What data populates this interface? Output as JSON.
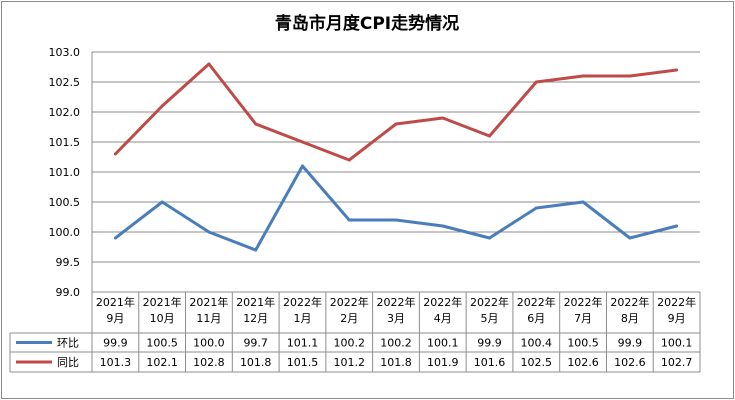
{
  "chart_data": {
    "type": "line",
    "title": "青岛市月度CPI走势情况",
    "categories": [
      [
        "2021年",
        "9月"
      ],
      [
        "2021年",
        "10月"
      ],
      [
        "2021年",
        "11月"
      ],
      [
        "2021年",
        "12月"
      ],
      [
        "2022年",
        "1月"
      ],
      [
        "2022年",
        "2月"
      ],
      [
        "2022年",
        "3月"
      ],
      [
        "2022年",
        "4月"
      ],
      [
        "2022年",
        "5月"
      ],
      [
        "2022年",
        "6月"
      ],
      [
        "2022年",
        "7月"
      ],
      [
        "2022年",
        "8月"
      ],
      [
        "2022年",
        "9月"
      ]
    ],
    "series": [
      {
        "name": "环比",
        "color": "#4a7ebb",
        "values": [
          99.9,
          100.5,
          100.0,
          99.7,
          101.1,
          100.2,
          100.2,
          100.1,
          99.9,
          100.4,
          100.5,
          99.9,
          100.1
        ]
      },
      {
        "name": "同比",
        "color": "#be4b48",
        "values": [
          101.3,
          102.1,
          102.8,
          101.8,
          101.5,
          101.2,
          101.8,
          101.9,
          101.6,
          102.5,
          102.6,
          102.6,
          102.7
        ]
      }
    ],
    "ylim": [
      99.0,
      103.0
    ],
    "yticks": [
      "99.0",
      "99.5",
      "100.0",
      "100.5",
      "101.0",
      "101.5",
      "102.0",
      "102.5",
      "103.0"
    ],
    "grid": true,
    "legend_placement": "data-table"
  }
}
